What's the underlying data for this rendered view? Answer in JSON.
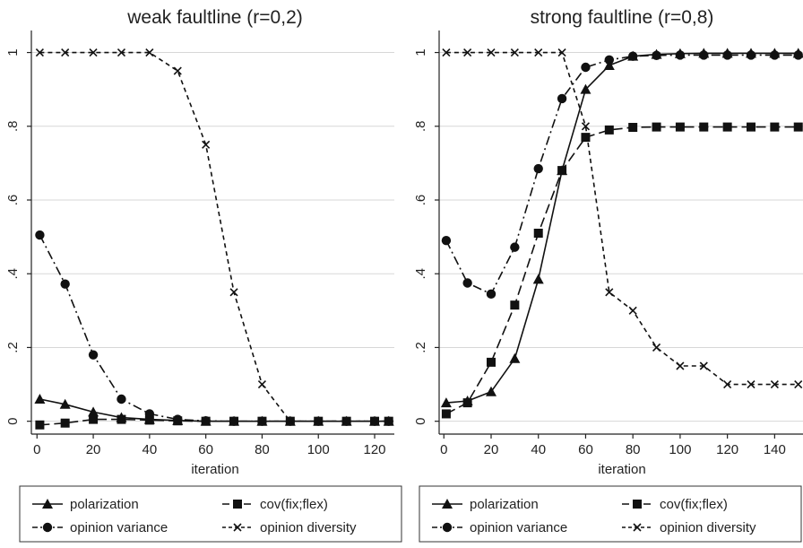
{
  "chart_data": [
    {
      "type": "line",
      "title": "weak faultline (r=0,2)",
      "xlabel": "iteration",
      "ylabel": "",
      "xlim": [
        -2,
        127
      ],
      "ylim": [
        -0.03,
        1.05
      ],
      "x_ticks": [
        0,
        20,
        40,
        60,
        80,
        100,
        120
      ],
      "y_ticks": [
        0,
        0.2,
        0.4,
        0.6,
        0.8,
        1
      ],
      "x_tick_labels": [
        "0",
        "20",
        "40",
        "60",
        "80",
        "100",
        "120"
      ],
      "y_tick_labels": [
        "0",
        ".2",
        ".4",
        ".6",
        ".8",
        "1"
      ],
      "grid": true,
      "legend_position": "bottom",
      "series": [
        {
          "name": "polarization",
          "marker": "triangle",
          "dash": "solid",
          "x": [
            1,
            10,
            20,
            30,
            40,
            50,
            60,
            70,
            80,
            90,
            100,
            110,
            120,
            125
          ],
          "values": [
            0.06,
            0.046,
            0.025,
            0.01,
            0.005,
            0.002,
            0,
            0,
            0,
            0,
            0,
            0,
            0,
            0
          ]
        },
        {
          "name": "cov(fix;flex)",
          "marker": "square",
          "dash": "long-dash",
          "x": [
            1,
            10,
            20,
            30,
            40,
            50,
            60,
            70,
            80,
            90,
            100,
            110,
            120,
            125
          ],
          "values": [
            -0.01,
            -0.005,
            0.005,
            0.005,
            0.003,
            0.001,
            0,
            0,
            0,
            0,
            0,
            0,
            0,
            0
          ]
        },
        {
          "name": "opinion variance",
          "marker": "circle",
          "dash": "dash-dot",
          "x": [
            1,
            10,
            20,
            30,
            40,
            50,
            60,
            70,
            80,
            90,
            100,
            110,
            120,
            125
          ],
          "values": [
            0.505,
            0.372,
            0.18,
            0.06,
            0.02,
            0.005,
            0.001,
            0,
            0,
            0,
            0,
            0,
            0,
            0
          ]
        },
        {
          "name": "opinion diversity",
          "marker": "x",
          "dash": "short-dash",
          "x": [
            1,
            10,
            20,
            30,
            40,
            50,
            60,
            70,
            80,
            90,
            100,
            110,
            120,
            125
          ],
          "values": [
            1,
            1,
            1,
            1,
            1,
            0.95,
            0.75,
            0.35,
            0.1,
            0,
            0,
            0,
            0,
            0
          ]
        }
      ]
    },
    {
      "type": "line",
      "title": "strong faultline (r=0,8)",
      "xlabel": "iteration",
      "ylabel": "",
      "xlim": [
        -2,
        152
      ],
      "ylim": [
        -0.03,
        1.05
      ],
      "x_ticks": [
        0,
        20,
        40,
        60,
        80,
        100,
        120,
        140
      ],
      "y_ticks": [
        0,
        0.2,
        0.4,
        0.6,
        0.8,
        1
      ],
      "x_tick_labels": [
        "0",
        "20",
        "40",
        "60",
        "80",
        "100",
        "120",
        "140"
      ],
      "y_tick_labels": [
        "0",
        ".2",
        ".4",
        ".6",
        ".8",
        "1"
      ],
      "grid": true,
      "legend_position": "bottom",
      "series": [
        {
          "name": "polarization",
          "marker": "triangle",
          "dash": "solid",
          "x": [
            1,
            10,
            20,
            30,
            40,
            50,
            60,
            70,
            80,
            90,
            100,
            110,
            120,
            130,
            140,
            150
          ],
          "values": [
            0.05,
            0.055,
            0.08,
            0.17,
            0.385,
            0.68,
            0.9,
            0.965,
            0.99,
            0.995,
            0.997,
            0.998,
            0.998,
            0.998,
            0.998,
            0.998
          ]
        },
        {
          "name": "cov(fix;flex)",
          "marker": "square",
          "dash": "long-dash",
          "x": [
            1,
            10,
            20,
            30,
            40,
            50,
            60,
            70,
            80,
            90,
            100,
            110,
            120,
            130,
            140,
            150
          ],
          "values": [
            0.02,
            0.05,
            0.16,
            0.315,
            0.51,
            0.68,
            0.77,
            0.79,
            0.797,
            0.798,
            0.798,
            0.798,
            0.798,
            0.798,
            0.798,
            0.798
          ]
        },
        {
          "name": "opinion variance",
          "marker": "circle",
          "dash": "dash-dot",
          "x": [
            1,
            10,
            20,
            30,
            40,
            50,
            60,
            70,
            80,
            90,
            100,
            110,
            120,
            130,
            140,
            150
          ],
          "values": [
            0.49,
            0.375,
            0.345,
            0.472,
            0.685,
            0.875,
            0.96,
            0.98,
            0.99,
            0.992,
            0.993,
            0.993,
            0.993,
            0.993,
            0.993,
            0.993
          ]
        },
        {
          "name": "opinion diversity",
          "marker": "x",
          "dash": "short-dash",
          "x": [
            1,
            10,
            20,
            30,
            40,
            50,
            60,
            70,
            80,
            90,
            100,
            110,
            120,
            130,
            140,
            150
          ],
          "values": [
            1,
            1,
            1,
            1,
            1,
            1,
            0.8,
            0.35,
            0.3,
            0.2,
            0.15,
            0.15,
            0.1,
            0.1,
            0.1,
            0.1
          ]
        }
      ]
    }
  ]
}
